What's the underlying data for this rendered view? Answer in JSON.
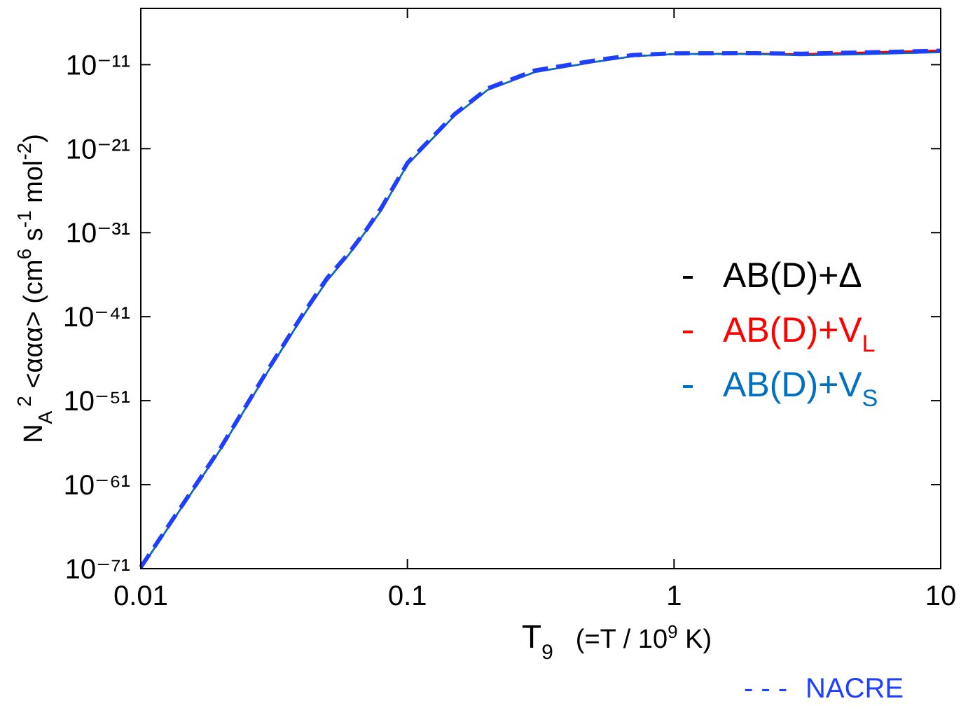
{
  "chart_data": {
    "type": "line",
    "x_log": true,
    "y_log": true,
    "xlabel": [
      "T",
      "9",
      "(=T / 10",
      "9",
      " K)"
    ],
    "ylabel": [
      "N",
      "A",
      "2",
      " <ααα> (cm",
      "6",
      " s",
      "-1",
      " mol",
      "-2",
      ")"
    ],
    "x": [
      0.01,
      0.02,
      0.03,
      0.04,
      0.05,
      0.06,
      0.07,
      0.08,
      0.09,
      0.1,
      0.15,
      0.2,
      0.3,
      0.5,
      0.7,
      1,
      2,
      3,
      5,
      10
    ],
    "xlim": [
      0.01,
      10
    ],
    "xticks": [
      0.01,
      0.1,
      1,
      10
    ],
    "ylim": [
      1e-71,
      5e-05
    ],
    "yticks": [
      {
        "value": 1e-71,
        "label": "10⁻⁷¹"
      },
      {
        "value": 1e-61,
        "label": "10⁻⁶¹"
      },
      {
        "value": 1e-51,
        "label": "10⁻⁵¹"
      },
      {
        "value": 1e-41,
        "label": "10⁻⁴¹"
      },
      {
        "value": 1e-31,
        "label": "10⁻³¹"
      },
      {
        "value": 1e-21,
        "label": "10⁻²¹"
      },
      {
        "value": 1e-11,
        "label": "10⁻¹¹"
      }
    ],
    "series": [
      {
        "name": "AB(D)+Δ",
        "color": "#000000",
        "dashed": false,
        "values": [
          1e-71,
          2e-57,
          3e-48,
          6e-42,
          2e-37,
          2e-34,
          1.6e-31,
          5e-29,
          4e-26,
          1.3e-23,
          8e-18,
          1e-14,
          1.3e-12,
          2e-11,
          1e-10,
          1.8e-10,
          2e-10,
          1.6e-10,
          2.2e-10,
          4e-10
        ]
      },
      {
        "name": "AB(D)+V",
        "subscript": "L",
        "color": "#ff0000",
        "dashed": false,
        "values": [
          1e-71,
          2e-57,
          3e-48,
          6e-42,
          2e-37,
          2e-34,
          1.6e-31,
          5e-29,
          4e-26,
          1.3e-23,
          8e-18,
          1e-14,
          1.3e-12,
          2e-11,
          1e-10,
          1.8e-10,
          2e-10,
          1.8e-10,
          2.8e-10,
          5e-10
        ]
      },
      {
        "name": "AB(D)+V",
        "subscript": "S",
        "color": "#0070c0",
        "dashed": false,
        "values": [
          1e-71,
          2e-57,
          3e-48,
          6e-42,
          2e-37,
          2e-34,
          1.6e-31,
          5e-29,
          4e-26,
          1.3e-23,
          8e-18,
          1e-14,
          1.3e-12,
          2e-11,
          1e-10,
          1.8e-10,
          1.8e-10,
          1.3e-10,
          1.7e-10,
          3e-10
        ]
      },
      {
        "name": "NACRE",
        "color": "#1f3fff",
        "dashed": true,
        "values": [
          1.5e-71,
          3e-57,
          5e-48,
          1e-41,
          4e-37,
          3e-34,
          2e-31,
          1e-28,
          6e-26,
          2e-23,
          1.2e-17,
          1.5e-14,
          2e-12,
          3e-11,
          1.4e-10,
          2.2e-10,
          2.3e-10,
          2e-10,
          2.8e-10,
          4.5e-10
        ]
      }
    ]
  }
}
